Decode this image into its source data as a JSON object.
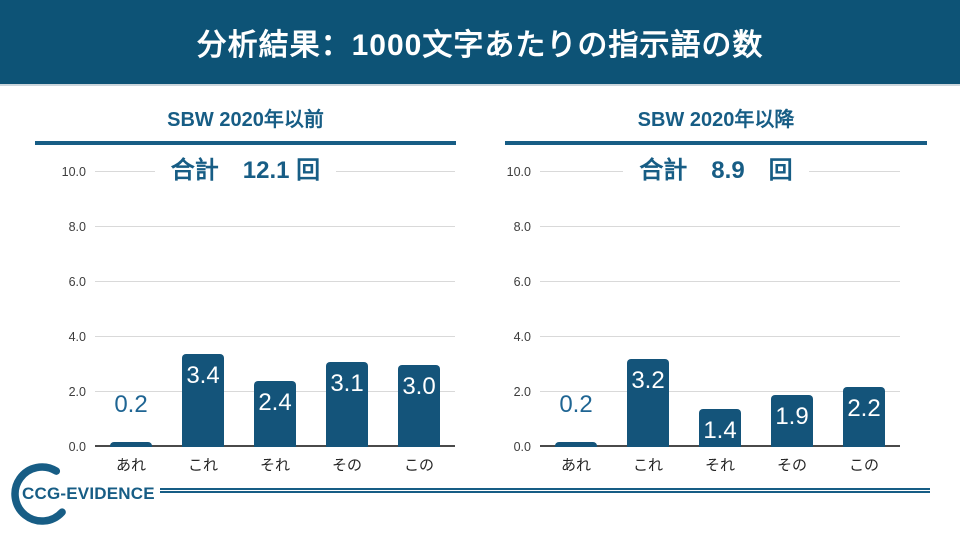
{
  "slide": {
    "title": "分析結果：1000文字あたりの指示語の数"
  },
  "logo": {
    "text": "CCG-EVIDENCE"
  },
  "theme": {
    "header_bg": "#0d5376",
    "brand_blue": "#175d85",
    "bar_color": "#14547a",
    "outside_value_label_color": "#1f6593",
    "gridline_color": "#d9d9d9"
  },
  "chart_data": [
    {
      "type": "bar",
      "title": "SBW 2020年以前",
      "total": 12.1,
      "total_label": "合計　12.1 回",
      "categories": [
        "あれ",
        "これ",
        "それ",
        "その",
        "この"
      ],
      "values": [
        0.2,
        3.4,
        2.4,
        3.1,
        3.0
      ],
      "ylim": [
        0,
        10
      ],
      "yticks": [
        0.0,
        2.0,
        4.0,
        6.0,
        8.0,
        10.0
      ],
      "grid": true,
      "legend": "none"
    },
    {
      "type": "bar",
      "title": "SBW 2020年以降",
      "total": 8.9,
      "total_label": "合計　8.9　回",
      "categories": [
        "あれ",
        "これ",
        "それ",
        "その",
        "この"
      ],
      "values": [
        0.2,
        3.2,
        1.4,
        1.9,
        2.2
      ],
      "ylim": [
        0,
        10
      ],
      "yticks": [
        0.0,
        2.0,
        4.0,
        6.0,
        8.0,
        10.0
      ],
      "grid": true,
      "legend": "none"
    }
  ]
}
